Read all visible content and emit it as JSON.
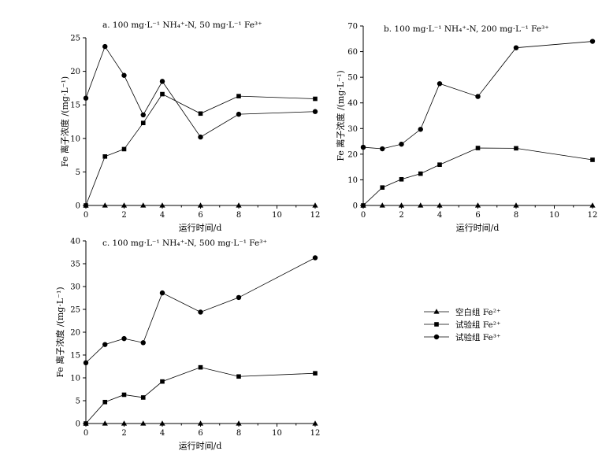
{
  "chart_data": [
    {
      "type": "line",
      "title": "a. 100 mg·L⁻¹ NH₄⁺-N, 50 mg·L⁻¹ Fe³⁺",
      "xlabel": "运行时间/d",
      "ylabel": "Fe 离子浓度 /(mg·L⁻¹)",
      "xlim": [
        0,
        12
      ],
      "ylim": [
        0,
        25
      ],
      "xticks": [
        "0",
        "2",
        "4",
        "6",
        "8",
        "10",
        "12"
      ],
      "yticks": [
        "0",
        "5",
        "10",
        "15",
        "20",
        "25"
      ],
      "x": [
        0,
        1,
        2,
        3,
        4,
        6,
        8,
        12
      ],
      "series": [
        {
          "name": "空白组 Fe²⁺",
          "marker": "triangle",
          "values": [
            0,
            0,
            0,
            0,
            0,
            0,
            0,
            0
          ]
        },
        {
          "name": "试验组 Fe²⁺",
          "marker": "square",
          "values": [
            0,
            7.3,
            8.4,
            12.3,
            16.6,
            13.7,
            16.3,
            15.9
          ]
        },
        {
          "name": "试验组 Fe³⁺",
          "marker": "circle",
          "values": [
            16,
            23.7,
            19.4,
            13.5,
            18.5,
            10.2,
            13.6,
            14
          ]
        }
      ]
    },
    {
      "type": "line",
      "title": "b. 100 mg·L⁻¹ NH₄⁺-N, 200 mg·L⁻¹ Fe³⁺",
      "xlabel": "运行时间/d",
      "ylabel": "Fe 离子浓度 /(mg·L⁻¹)",
      "xlim": [
        0,
        12
      ],
      "ylim": [
        0,
        70
      ],
      "xticks": [
        "0",
        "2",
        "4",
        "6",
        "8",
        "10",
        "12"
      ],
      "yticks": [
        "0",
        "10",
        "20",
        "30",
        "40",
        "50",
        "60",
        "70"
      ],
      "x": [
        0,
        1,
        2,
        3,
        4,
        6,
        8,
        12
      ],
      "series": [
        {
          "name": "空白组 Fe²⁺",
          "marker": "triangle",
          "values": [
            0,
            0,
            0,
            0,
            0,
            0,
            0,
            0
          ]
        },
        {
          "name": "试验组 Fe²⁺",
          "marker": "square",
          "values": [
            0,
            7,
            10.2,
            12.4,
            15.9,
            22.4,
            22.3,
            17.8
          ]
        },
        {
          "name": "试验组 Fe³⁺",
          "marker": "circle",
          "values": [
            22.7,
            22.1,
            23.9,
            29.7,
            47.5,
            42.5,
            61.5,
            64
          ]
        }
      ]
    },
    {
      "type": "line",
      "title": "c. 100 mg·L⁻¹ NH₄⁺-N, 500 mg·L⁻¹ Fe³⁺",
      "xlabel": "运行时间/d",
      "ylabel": "Fe 离子浓度 /(mg·L⁻¹)",
      "xlim": [
        0,
        12
      ],
      "ylim": [
        0,
        40
      ],
      "xticks": [
        "0",
        "2",
        "4",
        "6",
        "8",
        "10",
        "12"
      ],
      "yticks": [
        "0",
        "5",
        "10",
        "15",
        "20",
        "25",
        "30",
        "35",
        "40"
      ],
      "x": [
        0,
        1,
        2,
        3,
        4,
        6,
        8,
        12
      ],
      "series": [
        {
          "name": "空白组 Fe²⁺",
          "marker": "triangle",
          "values": [
            0,
            0,
            0,
            0,
            0,
            0,
            0,
            0
          ]
        },
        {
          "name": "试验组 Fe²⁺",
          "marker": "square",
          "values": [
            0,
            4.7,
            6.3,
            5.7,
            9.2,
            12.3,
            10.3,
            11
          ]
        },
        {
          "name": "试验组 Fe³⁺",
          "marker": "circle",
          "values": [
            13.3,
            17.3,
            18.6,
            17.7,
            28.6,
            24.4,
            27.6,
            36.3
          ]
        }
      ]
    }
  ],
  "legend": [
    {
      "marker": "triangle",
      "label": "空白组 Fe²⁺"
    },
    {
      "marker": "square",
      "label": "试验组 Fe²⁺"
    },
    {
      "marker": "circle",
      "label": "试验组 Fe³⁺"
    }
  ]
}
